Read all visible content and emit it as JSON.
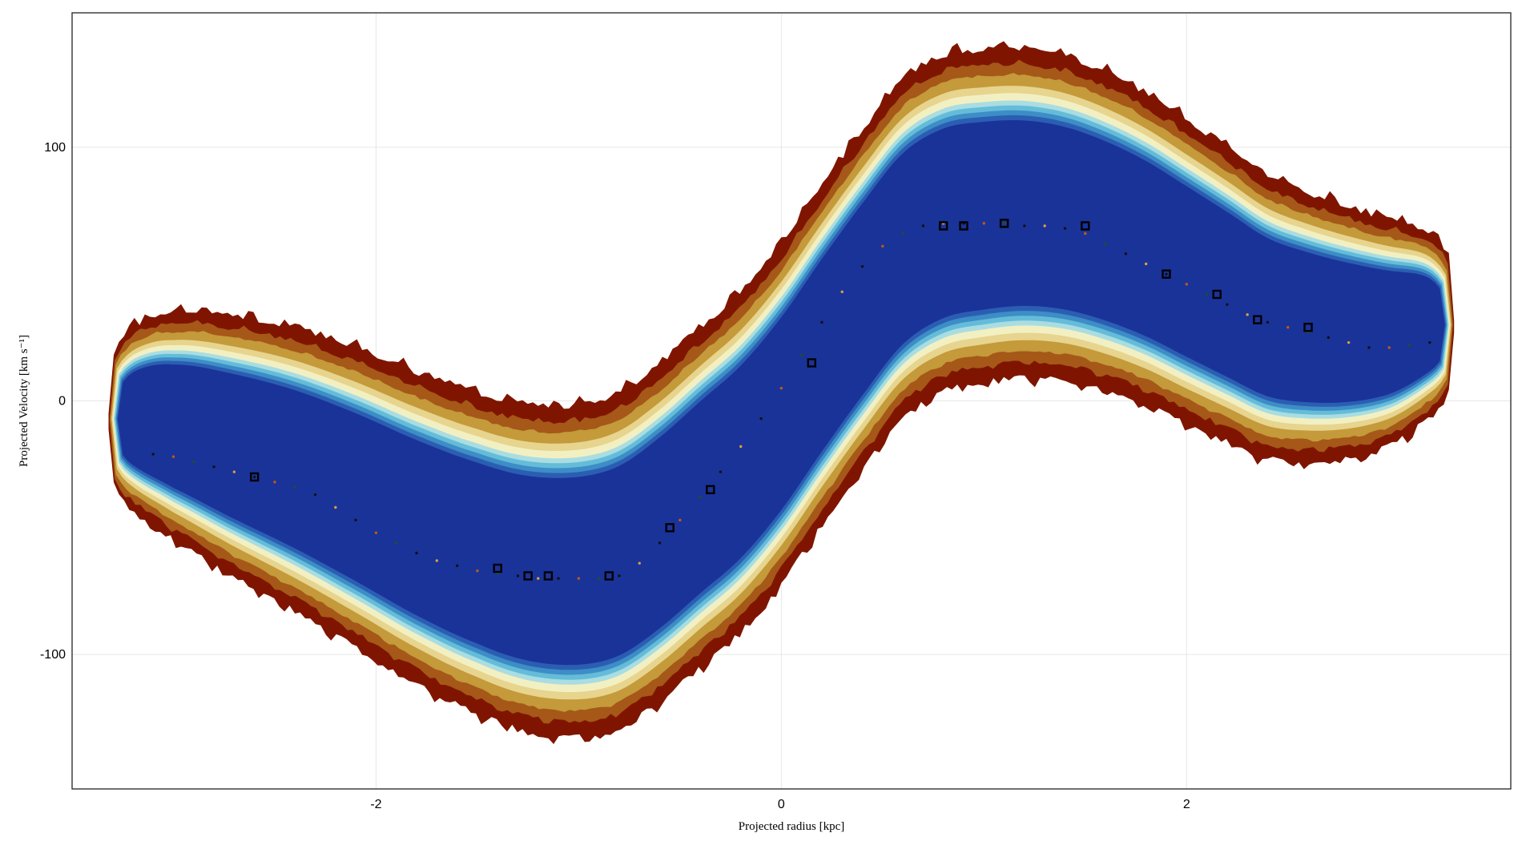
{
  "chart_data": {
    "type": "contour",
    "title": "",
    "xlabel": "Projected radius [kpc]",
    "ylabel": "Projected Velocity [km s⁻¹]",
    "xlim": [
      -3.5,
      3.6
    ],
    "ylim": [
      -153,
      153
    ],
    "grid": true,
    "x_ticks": [
      {
        "value": -2,
        "label": "-2"
      },
      {
        "value": 0,
        "label": "0"
      },
      {
        "value": 2,
        "label": "2"
      }
    ],
    "y_ticks": [
      {
        "value": 100,
        "label": "100"
      },
      {
        "value": 0,
        "label": "0"
      },
      {
        "value": -100,
        "label": "-100"
      }
    ],
    "contour_levels": [
      {
        "name": "level-1",
        "color": "#7f1500"
      },
      {
        "name": "level-2",
        "color": "#a55818"
      },
      {
        "name": "level-3",
        "color": "#c49a3a"
      },
      {
        "name": "level-4",
        "color": "#e7d48e"
      },
      {
        "name": "level-5",
        "color": "#f2f0c2"
      },
      {
        "name": "level-6",
        "color": "#a9dde2"
      },
      {
        "name": "level-7",
        "color": "#64bcd9"
      },
      {
        "name": "level-8",
        "color": "#3d8dc6"
      },
      {
        "name": "level-9",
        "color": "#2b5eb2"
      },
      {
        "name": "level-10",
        "color": "#1a3399"
      }
    ],
    "contour_widths": [
      66,
      60,
      56,
      52,
      49,
      46,
      44,
      42,
      40,
      38
    ],
    "contour_center": {
      "x": [
        -3.2,
        -3.0,
        -2.7,
        -2.4,
        -2.1,
        -1.8,
        -1.5,
        -1.25,
        -1.0,
        -0.8,
        -0.6,
        -0.4,
        -0.2,
        0.0,
        0.2,
        0.4,
        0.6,
        0.8,
        1.0,
        1.2,
        1.4,
        1.6,
        1.8,
        2.0,
        2.2,
        2.4,
        2.6,
        2.8,
        3.0,
        3.2
      ],
      "y": [
        -7,
        -10,
        -18,
        -27,
        -38,
        -50,
        -60,
        -66,
        -67,
        -63,
        -52,
        -38,
        -24,
        -5,
        18,
        40,
        60,
        70,
        73,
        74,
        72,
        67,
        60,
        51,
        42,
        33,
        29,
        27,
        27,
        30
      ]
    },
    "ridge_points": {
      "x": [
        -3.1,
        -3.0,
        -2.9,
        -2.8,
        -2.7,
        -2.6,
        -2.5,
        -2.4,
        -2.3,
        -2.2,
        -2.1,
        -2.0,
        -1.9,
        -1.8,
        -1.7,
        -1.6,
        -1.5,
        -1.4,
        -1.3,
        -1.2,
        -1.1,
        -1.0,
        -0.9,
        -0.8,
        -0.7,
        -0.6,
        -0.5,
        -0.4,
        -0.3,
        -0.2,
        -0.1,
        0.0,
        0.1,
        0.2,
        0.3,
        0.4,
        0.5,
        0.6,
        0.7,
        0.8,
        0.9,
        1.0,
        1.1,
        1.2,
        1.3,
        1.4,
        1.5,
        1.6,
        1.7,
        1.8,
        1.9,
        2.0,
        2.1,
        2.2,
        2.3,
        2.4,
        2.5,
        2.6,
        2.7,
        2.8,
        2.9,
        3.0,
        3.1,
        3.2
      ],
      "y": [
        -21,
        -22,
        -24,
        -26,
        -28,
        -30,
        -32,
        -34,
        -37,
        -42,
        -47,
        -52,
        -56,
        -60,
        -63,
        -65,
        -67,
        -68,
        -69,
        -70,
        -70,
        -70,
        -70,
        -69,
        -64,
        -56,
        -47,
        -38,
        -28,
        -18,
        -7,
        5,
        18,
        31,
        43,
        53,
        61,
        66,
        69,
        70,
        70,
        70,
        70,
        69,
        69,
        68,
        66,
        62,
        58,
        54,
        50,
        46,
        42,
        38,
        34,
        31,
        29,
        27,
        25,
        23,
        21,
        21,
        22,
        23
      ]
    },
    "highlight_points": {
      "x": [
        -2.6,
        -1.4,
        -1.25,
        -1.15,
        -0.85,
        -0.55,
        -0.35,
        0.15,
        0.8,
        0.9,
        1.1,
        1.5,
        1.9,
        2.15,
        2.35,
        2.6
      ],
      "y": [
        -30,
        -66,
        -69,
        -69,
        -69,
        -50,
        -35,
        15,
        69,
        69,
        70,
        69,
        50,
        42,
        32,
        29
      ]
    }
  }
}
